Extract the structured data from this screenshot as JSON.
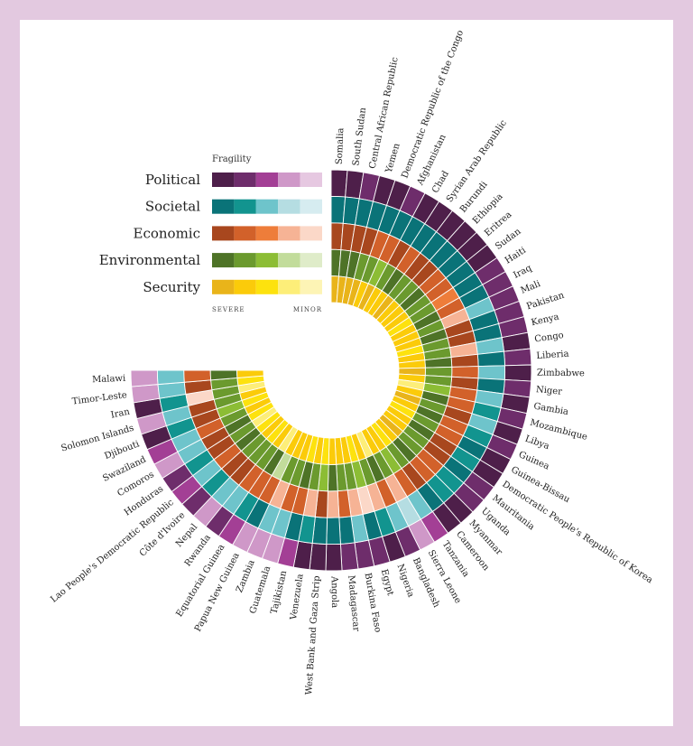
{
  "chart_data": {
    "type": "radial-heatmap",
    "legend": {
      "title": "Fragility",
      "severe_label": "SEVERE",
      "minor_label": "MINOR",
      "placement": "top-left"
    },
    "dimensions": [
      {
        "name": "Political",
        "colors": [
          "#4e1f4a",
          "#6e2d6b",
          "#a33f95",
          "#cf98c8",
          "#e6c8e1"
        ]
      },
      {
        "name": "Societal",
        "colors": [
          "#0a7378",
          "#12948f",
          "#6ec4cb",
          "#b5dde2",
          "#d6ecf0"
        ]
      },
      {
        "name": "Economic",
        "colors": [
          "#a8471e",
          "#d2612a",
          "#ee7d3a",
          "#f6b395",
          "#fbd8c8"
        ]
      },
      {
        "name": "Environmental",
        "colors": [
          "#4e7327",
          "#6b9a2e",
          "#8cbd35",
          "#c2dc9b",
          "#dfecc9"
        ]
      },
      {
        "name": "Security",
        "colors": [
          "#e9b41a",
          "#fbcb0a",
          "#fde20e",
          "#fdee79",
          "#fdf4b5"
        ]
      }
    ],
    "scale": "1 = severe … 5 = minor",
    "categories": [
      "Somalia",
      "South Sudan",
      "Central African Republic",
      "Yemen",
      "Democratic Republic of the Congo",
      "Afghanistan",
      "Chad",
      "Syrian Arab Republic",
      "Burundi",
      "Ethiopia",
      "Eritrea",
      "Sudan",
      "Haiti",
      "Iraq",
      "Mali",
      "Pakistan",
      "Kenya",
      "Congo",
      "Liberia",
      "Zimbabwe",
      "Niger",
      "Gambia",
      "Mozambique",
      "Libya",
      "Guinea",
      "Guinea-Bissau",
      "Democratic People's Republic of Korea",
      "Mauritania",
      "Uganda",
      "Myanmar",
      "Cameroon",
      "Tanzania",
      "Sierra Leone",
      "Bangladesh",
      "Nigeria",
      "Egypt",
      "Burkina Faso",
      "Madagascar",
      "Angola",
      "West Bank and Gaza Strip",
      "Venezuela",
      "Tajikistan",
      "Guatemala",
      "Zambia",
      "Papua New Guinea",
      "Equatorial Guinea",
      "Rwanda",
      "Nepal",
      "Côte d'Ivoire",
      "Lao People's Democratic Republic",
      "Honduras",
      "Comoros",
      "Swaziland",
      "Djibouti",
      "Solomon Islands",
      "Iran",
      "Timor-Leste",
      "Malawi"
    ],
    "series": [
      {
        "name": "Political",
        "values": [
          1,
          1,
          2,
          1,
          1,
          2,
          1,
          1,
          1,
          1,
          1,
          1,
          2,
          2,
          2,
          2,
          2,
          1,
          2,
          1,
          2,
          1,
          2,
          1,
          2,
          1,
          1,
          2,
          2,
          1,
          1,
          3,
          4,
          2,
          1,
          2,
          2,
          2,
          1,
          1,
          1,
          3,
          4,
          4,
          4,
          3,
          2,
          4,
          2,
          3,
          2,
          4,
          3,
          1,
          4,
          1,
          4,
          4
        ]
      },
      {
        "name": "Societal",
        "values": [
          1,
          1,
          1,
          1,
          1,
          1,
          1,
          1,
          1,
          1,
          1,
          1,
          1,
          1,
          3,
          1,
          1,
          3,
          1,
          3,
          1,
          3,
          2,
          3,
          2,
          1,
          2,
          1,
          2,
          2,
          1,
          3,
          4,
          3,
          2,
          1,
          3,
          1,
          1,
          1,
          2,
          1,
          3,
          3,
          1,
          2,
          3,
          3,
          2,
          3,
          2,
          3,
          3,
          2,
          3,
          2,
          3,
          3
        ]
      },
      {
        "name": "Economic",
        "values": [
          1,
          1,
          1,
          1,
          2,
          2,
          1,
          2,
          1,
          1,
          2,
          2,
          3,
          2,
          4,
          1,
          1,
          4,
          1,
          2,
          1,
          2,
          2,
          1,
          2,
          2,
          1,
          1,
          2,
          2,
          1,
          2,
          4,
          2,
          4,
          5,
          4,
          2,
          4,
          1,
          4,
          2,
          2,
          4,
          2,
          2,
          2,
          1,
          1,
          2,
          1,
          1,
          2,
          1,
          1,
          5,
          1,
          2
        ]
      },
      {
        "name": "Environmental",
        "values": [
          1,
          1,
          1,
          2,
          2,
          3,
          2,
          1,
          2,
          2,
          1,
          2,
          2,
          1,
          2,
          1,
          2,
          2,
          1,
          2,
          2,
          3,
          1,
          2,
          1,
          2,
          1,
          2,
          2,
          1,
          2,
          3,
          2,
          1,
          2,
          3,
          2,
          2,
          1,
          3,
          2,
          1,
          2,
          2,
          4,
          1,
          2,
          2,
          2,
          1,
          2,
          1,
          2,
          3,
          2,
          2,
          2,
          1
        ]
      },
      {
        "name": "Security",
        "values": [
          1,
          1,
          1,
          1,
          2,
          1,
          2,
          2,
          1,
          2,
          2,
          2,
          3,
          2,
          2,
          2,
          3,
          2,
          2,
          1,
          2,
          4,
          2,
          1,
          2,
          3,
          2,
          2,
          1,
          2,
          3,
          2,
          2,
          4,
          2,
          3,
          2,
          2,
          2,
          3,
          2,
          3,
          2,
          2,
          2,
          4,
          2,
          3,
          2,
          3,
          4,
          3,
          2,
          3,
          2,
          4,
          3,
          2
        ]
      }
    ],
    "angular_span_degrees": 270
  }
}
